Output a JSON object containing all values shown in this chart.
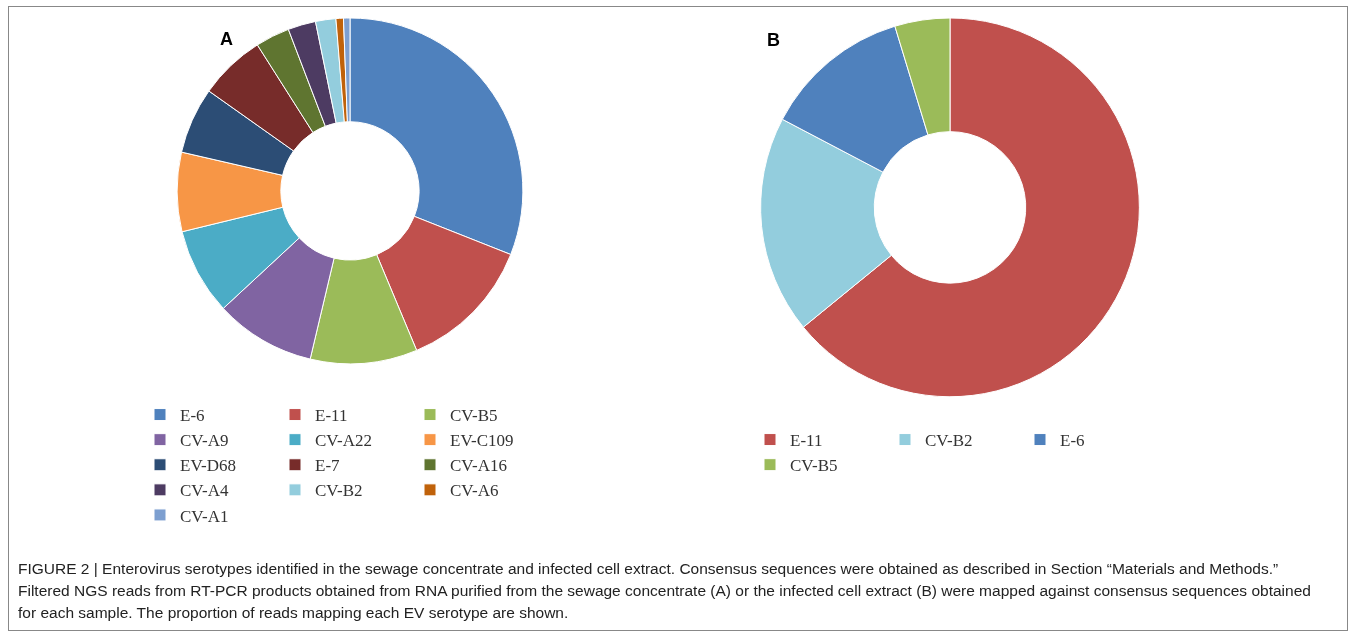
{
  "chart_data": [
    {
      "type": "donut",
      "title": "A",
      "categories": [
        "E-6",
        "E-11",
        "CV-B5",
        "CV-A9",
        "CV-A22",
        "EV-C109",
        "EV-D68",
        "E-7",
        "CV-A16",
        "CV-A4",
        "CV-B2",
        "CV-A6",
        "CV-A1"
      ],
      "values": [
        31.0,
        12.7,
        10.0,
        9.4,
        8.1,
        7.4,
        6.2,
        6.2,
        3.2,
        2.6,
        1.9,
        0.7,
        0.6
      ],
      "colors": [
        "#4f81bd",
        "#c0504d",
        "#9bbb59",
        "#8064a2",
        "#4bacc6",
        "#f79646",
        "#2c4d75",
        "#772c2a",
        "#5f7530",
        "#4d3b62",
        "#93cddd",
        "#c0620a",
        "#7d9fd0"
      ],
      "legend": "bottom"
    },
    {
      "type": "donut",
      "title": "B",
      "categories": [
        "E-11",
        "CV-B2",
        "E-6",
        "CV-B5"
      ],
      "values": [
        64.1,
        18.6,
        12.6,
        4.7
      ],
      "colors": [
        "#c0504d",
        "#93cddd",
        "#4f81bd",
        "#9bbb59"
      ],
      "legend": "bottom",
      "annotations": [
        "FIGURE 2 | Enterovirus serotypes identified in the sewage concentrate and infected cell extract. Consensus sequences were obtained as described in Section “Materials and Methods.” Filtered NGS reads from RT-PCR products obtained from RNA purified from the sewage concentrate (A) or the infected cell extract (B) were mapped against consensus sequences obtained for each sample. The proportion of reads mapping each EV serotype are shown."
      ]
    }
  ]
}
